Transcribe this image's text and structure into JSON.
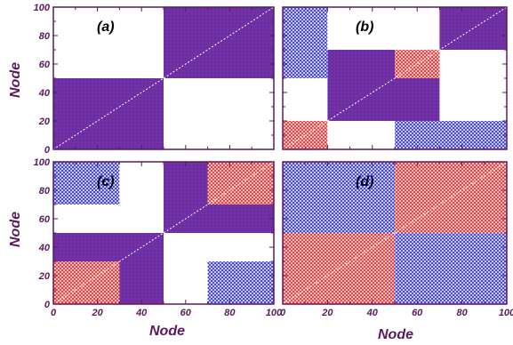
{
  "colors": {
    "intra": "#4b3aa8",
    "blue": "#2d2df0",
    "red": "#ff2020",
    "axis": "#5a1a5c",
    "diag": "#ffffff"
  },
  "figure": {
    "xlabel": "Node",
    "ylabel": "Node"
  },
  "chart_data": [
    {
      "type": "heatmap",
      "panel_label": "(a)",
      "xlim": [
        0,
        100
      ],
      "ylim": [
        0,
        100
      ],
      "xticks": [],
      "yticks": [
        "0",
        "20",
        "40",
        "60",
        "80",
        "100"
      ],
      "blocks": [
        {
          "x": [
            0,
            50
          ],
          "y": [
            0,
            50
          ],
          "color": "intra"
        },
        {
          "x": [
            50,
            100
          ],
          "y": [
            50,
            100
          ],
          "color": "intra"
        }
      ]
    },
    {
      "type": "heatmap",
      "panel_label": "(b)",
      "xlim": [
        0,
        100
      ],
      "ylim": [
        0,
        100
      ],
      "xticks": [],
      "yticks": [],
      "blocks": [
        {
          "x": [
            0,
            20
          ],
          "y": [
            0,
            20
          ],
          "color": "red"
        },
        {
          "x": [
            20,
            70
          ],
          "y": [
            20,
            70
          ],
          "color": "intra"
        },
        {
          "x": [
            50,
            70
          ],
          "y": [
            50,
            70
          ],
          "color": "red"
        },
        {
          "x": [
            70,
            100
          ],
          "y": [
            70,
            100
          ],
          "color": "intra"
        },
        {
          "x": [
            0,
            20
          ],
          "y": [
            70,
            100
          ],
          "color": "blue"
        },
        {
          "x": [
            70,
            100
          ],
          "y": [
            0,
            20
          ],
          "color": "blue"
        },
        {
          "x": [
            0,
            20
          ],
          "y": [
            50,
            70
          ],
          "color": "blue"
        },
        {
          "x": [
            50,
            70
          ],
          "y": [
            0,
            20
          ],
          "color": "blue"
        }
      ]
    },
    {
      "type": "heatmap",
      "panel_label": "(c)",
      "xlim": [
        0,
        100
      ],
      "ylim": [
        0,
        100
      ],
      "xticks": [
        "0",
        "20",
        "40",
        "60",
        "80",
        "100"
      ],
      "yticks": [
        "0",
        "20",
        "40",
        "60",
        "80",
        "100"
      ],
      "blocks": [
        {
          "x": [
            0,
            50
          ],
          "y": [
            0,
            50
          ],
          "color": "intra"
        },
        {
          "x": [
            0,
            30
          ],
          "y": [
            0,
            30
          ],
          "color": "red"
        },
        {
          "x": [
            50,
            100
          ],
          "y": [
            50,
            100
          ],
          "color": "intra"
        },
        {
          "x": [
            70,
            100
          ],
          "y": [
            70,
            100
          ],
          "color": "red"
        },
        {
          "x": [
            0,
            30
          ],
          "y": [
            70,
            100
          ],
          "color": "blue"
        },
        {
          "x": [
            70,
            100
          ],
          "y": [
            0,
            30
          ],
          "color": "blue"
        }
      ]
    },
    {
      "type": "heatmap",
      "panel_label": "(d)",
      "xlim": [
        0,
        100
      ],
      "ylim": [
        0,
        100
      ],
      "xticks": [
        "0",
        "20",
        "40",
        "60",
        "80",
        "100"
      ],
      "yticks": [],
      "blocks": [
        {
          "x": [
            0,
            50
          ],
          "y": [
            0,
            50
          ],
          "color": "red"
        },
        {
          "x": [
            50,
            100
          ],
          "y": [
            50,
            100
          ],
          "color": "red"
        },
        {
          "x": [
            0,
            50
          ],
          "y": [
            50,
            100
          ],
          "color": "blue"
        },
        {
          "x": [
            50,
            100
          ],
          "y": [
            0,
            50
          ],
          "color": "blue"
        }
      ]
    }
  ]
}
